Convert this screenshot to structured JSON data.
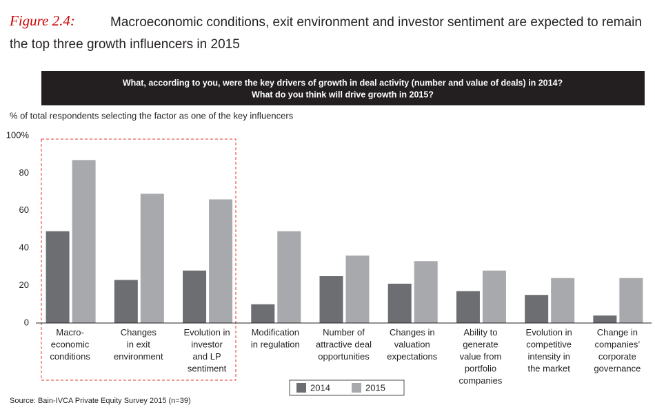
{
  "chart_data": {
    "type": "bar",
    "figure_label": "Figure 2.4:",
    "title": [
      "Macroeconomic conditions, exit environment and investor sentiment are expected to remain",
      "the top three growth influencers in 2015"
    ],
    "question": [
      "What, according to you, were the key drivers of growth in deal activity (number and value of deals) in 2014?",
      "What do you think will drive growth in 2015?"
    ],
    "ylabel": "% of total respondents selecting the factor as one of the key influencers",
    "categories": [
      [
        "Macro-",
        "economic",
        "conditions"
      ],
      [
        "Changes",
        "in exit",
        "environment"
      ],
      [
        "Evolution in",
        "investor",
        "and LP",
        "sentiment"
      ],
      [
        "Modification",
        "in regulation"
      ],
      [
        "Number of",
        "attractive deal",
        "opportunities"
      ],
      [
        "Changes in",
        "valuation",
        "expectations"
      ],
      [
        "Ability to",
        "generate",
        "value from",
        "portfolio",
        "companies"
      ],
      [
        "Evolution in",
        "competitive",
        "intensity in",
        "the market"
      ],
      [
        "Change in",
        "companies’",
        "corporate",
        "governance"
      ]
    ],
    "series": [
      {
        "name": "2014",
        "color": "#6d6e71",
        "values": [
          49,
          23,
          28,
          10,
          25,
          21,
          17,
          15,
          4
        ]
      },
      {
        "name": "2015",
        "color": "#a7a9ac",
        "values": [
          87,
          69,
          66,
          49,
          36,
          33,
          28,
          24,
          24
        ]
      }
    ],
    "ylim": [
      0,
      100
    ],
    "yticks": [
      0,
      20,
      40,
      60,
      80,
      {
        "value": 100,
        "label": "100%"
      }
    ],
    "source": "Source: Bain-IVCA Private Equity Survey 2015 (n=39)"
  }
}
